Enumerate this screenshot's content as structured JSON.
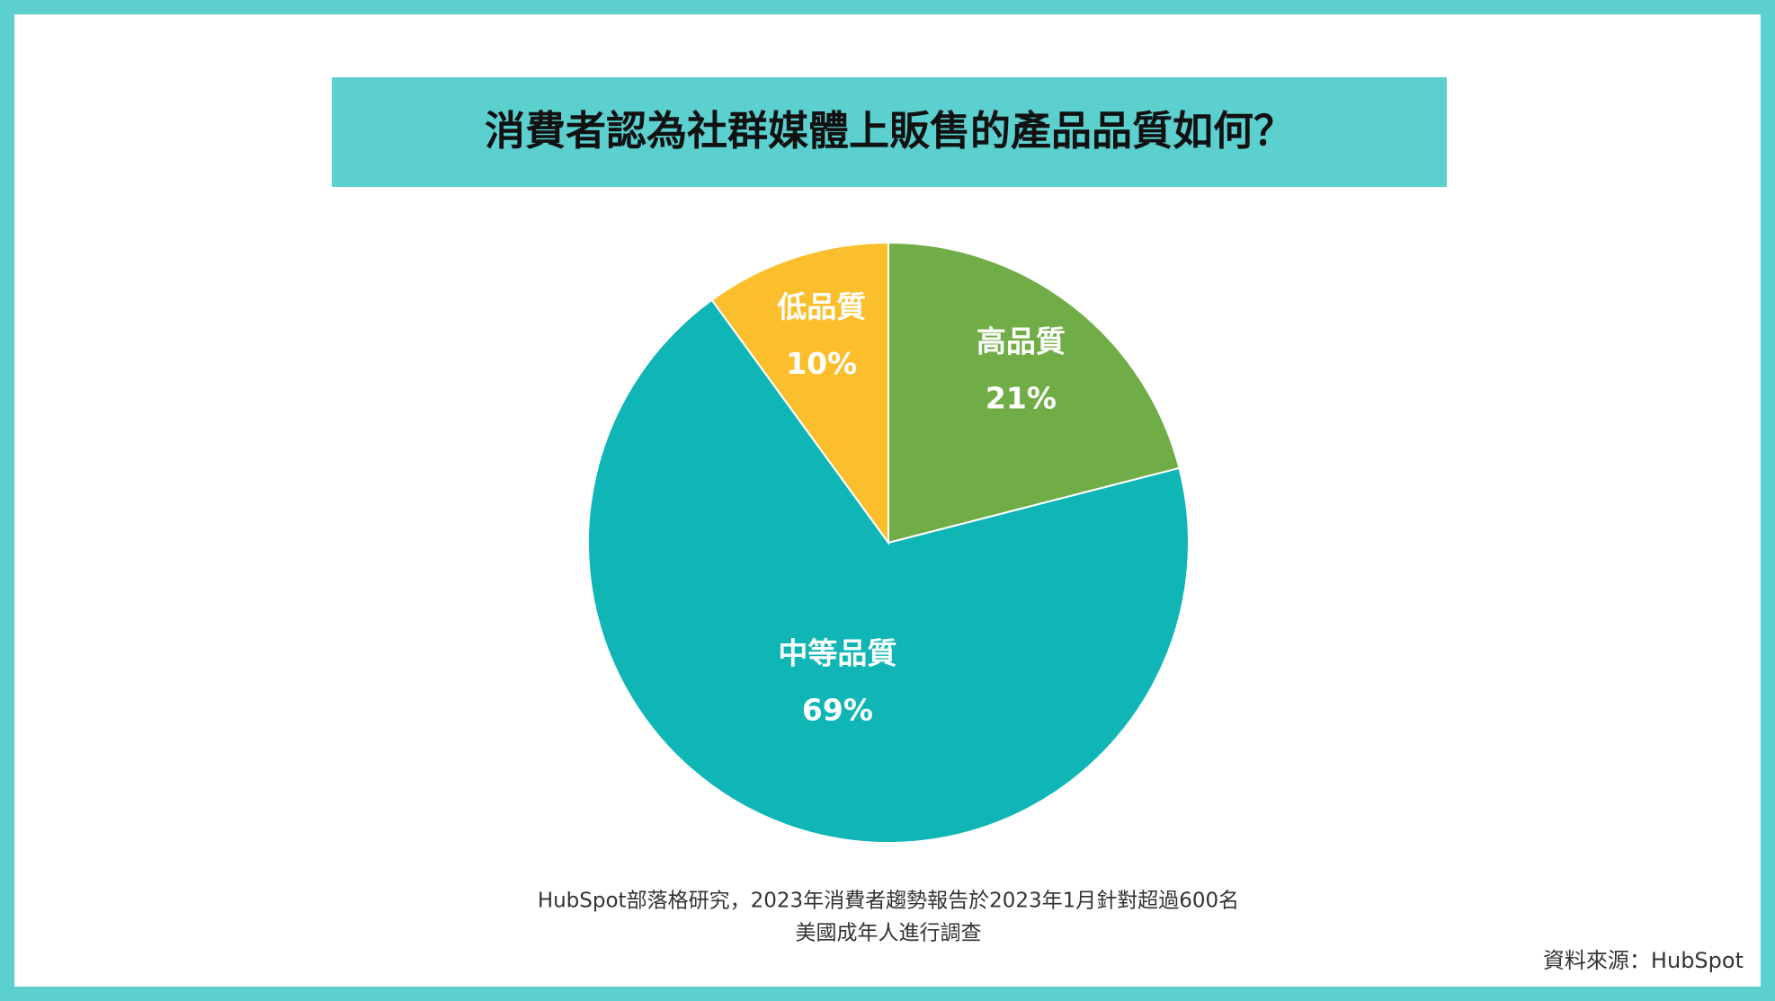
{
  "chart_data": {
    "type": "pie",
    "title": "消費者認為社群媒體上販售的產品品質如何？",
    "categories": [
      "高品質",
      "中等品質",
      "低品質"
    ],
    "values": [
      21,
      69,
      10
    ],
    "value_labels": [
      "21%",
      "69%",
      "10%"
    ],
    "colors": [
      "#70ad47",
      "#10b5b6",
      "#fbbe2c"
    ],
    "footnote": [
      "HubSpot部落格研究，2023年消費者趨勢報告於2023年1月針對超過600名",
      "美國成年人進行調查"
    ],
    "source": "資料來源：HubSpot"
  }
}
